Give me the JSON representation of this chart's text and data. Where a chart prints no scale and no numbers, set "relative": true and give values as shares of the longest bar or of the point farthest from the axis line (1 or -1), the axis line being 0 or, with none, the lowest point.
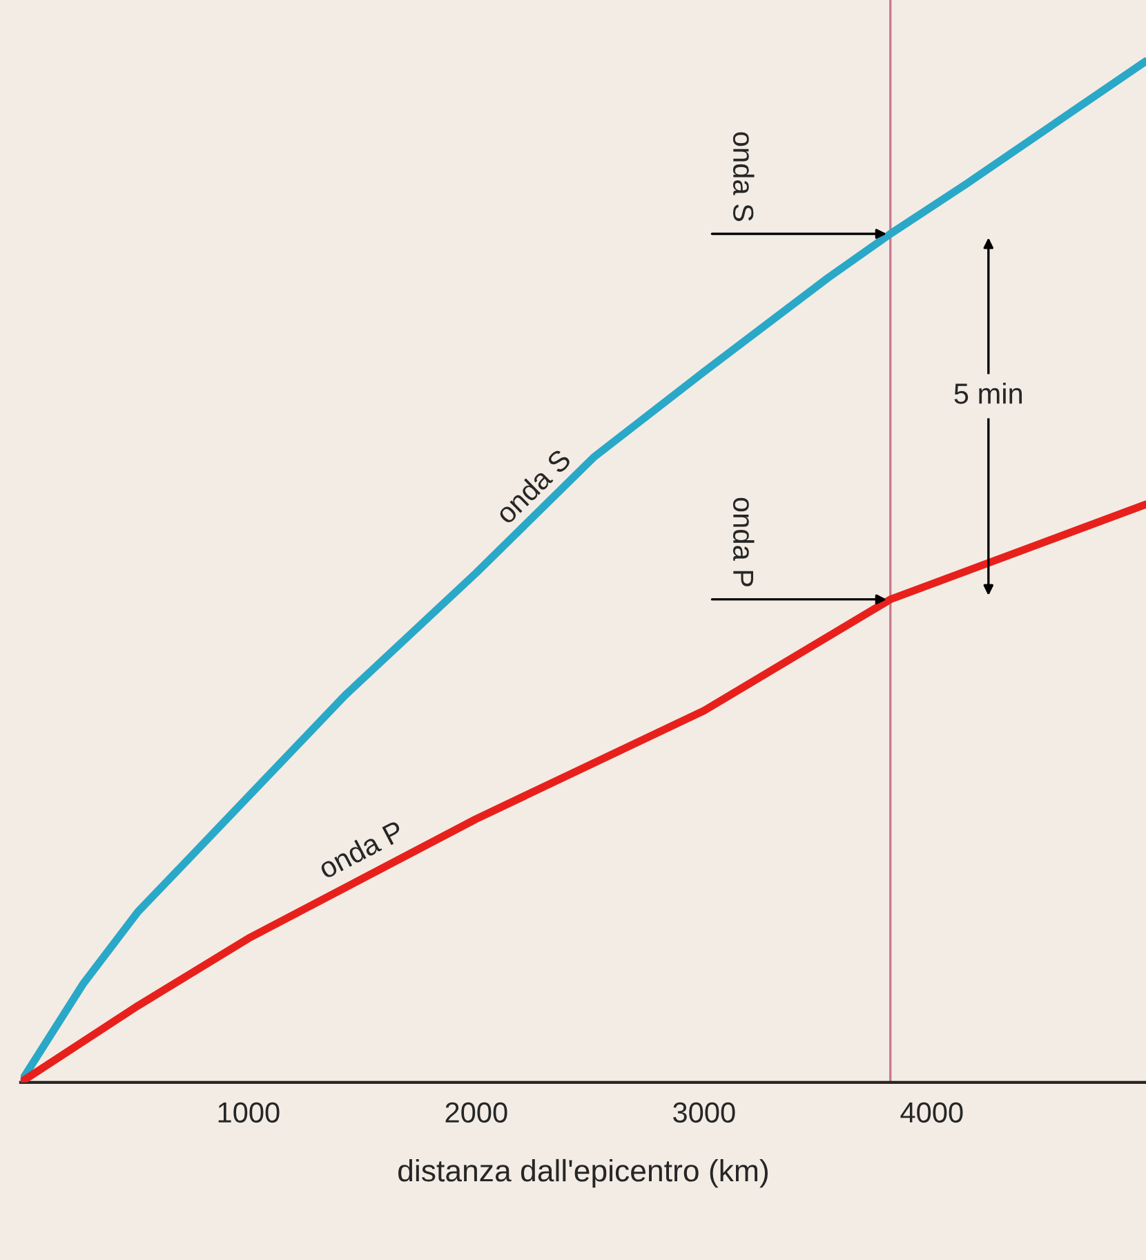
{
  "chart_data": {
    "type": "line",
    "relative": true,
    "xlabel": "distanza dall'epicentro (km)",
    "xlim": [
      0,
      4940
    ],
    "xticks": [
      1000,
      2000,
      3000,
      4000
    ],
    "grid": false,
    "legend": false,
    "series": [
      {
        "name": "onda S",
        "color": "#2aa8c8",
        "x": [
          0,
          273,
          515,
          1000,
          1424,
          2000,
          2515,
          3000,
          3545,
          3818,
          4152,
          4939
        ],
        "values": [
          0,
          0.096,
          0.167,
          0.28,
          0.379,
          0.499,
          0.612,
          0.696,
          0.788,
          0.831,
          0.88,
          1
        ]
      },
      {
        "name": "onda P",
        "color": "#e8201c",
        "x": [
          0,
          515,
          1000,
          2000,
          3000,
          3818,
          4939
        ],
        "values": [
          0,
          0.075,
          0.141,
          0.258,
          0.364,
          0.473,
          0.566
        ]
      }
    ],
    "ref_lines": [
      {
        "axis": "x",
        "value": 3818,
        "color": "#c87890"
      }
    ],
    "annotations": [
      {
        "text": "onda S",
        "x": 3818,
        "y": 0.831
      },
      {
        "text": "onda P",
        "x": 3818,
        "y": 0.473
      },
      "5 min"
    ]
  }
}
